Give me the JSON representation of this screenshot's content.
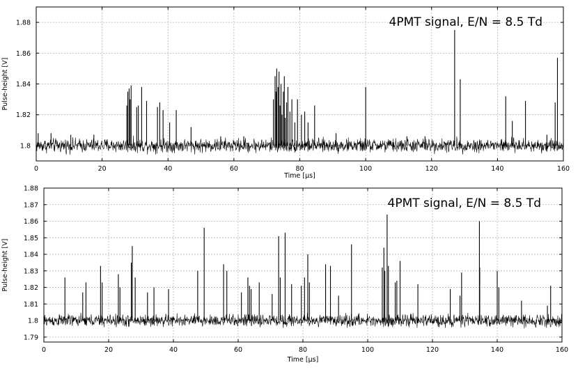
{
  "chart_data": [
    {
      "type": "line",
      "title": "4PMT signal, E/N = 8.5 Td",
      "xlabel": "Time [µs]",
      "ylabel": "Pulse-height [V]",
      "xlim": [
        0,
        160
      ],
      "ylim": [
        1.79,
        1.89
      ],
      "xticks": [
        0,
        20,
        40,
        60,
        80,
        100,
        120,
        140,
        160
      ],
      "yticks": [
        1.8,
        1.82,
        1.84,
        1.86,
        1.88
      ],
      "ytick_labels": [
        "1.8",
        "1.82",
        "1.84",
        "1.86",
        "1.88"
      ],
      "grid": true,
      "baseline": 1.8,
      "noise_amplitude": 0.0022,
      "color": "#000000",
      "spikes": [
        {
          "x": 0.6,
          "y": 1.808
        },
        {
          "x": 4.5,
          "y": 1.808
        },
        {
          "x": 10.5,
          "y": 1.807
        },
        {
          "x": 17.5,
          "y": 1.807
        },
        {
          "x": 27.5,
          "y": 1.826
        },
        {
          "x": 27.8,
          "y": 1.835
        },
        {
          "x": 28.2,
          "y": 1.837
        },
        {
          "x": 28.5,
          "y": 1.83
        },
        {
          "x": 28.8,
          "y": 1.839
        },
        {
          "x": 30.5,
          "y": 1.825
        },
        {
          "x": 31.0,
          "y": 1.826
        },
        {
          "x": 32.0,
          "y": 1.838
        },
        {
          "x": 33.5,
          "y": 1.829
        },
        {
          "x": 36.8,
          "y": 1.825
        },
        {
          "x": 37.5,
          "y": 1.828
        },
        {
          "x": 38.5,
          "y": 1.823
        },
        {
          "x": 40.5,
          "y": 1.815
        },
        {
          "x": 42.5,
          "y": 1.823
        },
        {
          "x": 47.0,
          "y": 1.812
        },
        {
          "x": 56.0,
          "y": 1.806
        },
        {
          "x": 63.0,
          "y": 1.806
        },
        {
          "x": 72.0,
          "y": 1.83
        },
        {
          "x": 72.5,
          "y": 1.845
        },
        {
          "x": 72.8,
          "y": 1.835
        },
        {
          "x": 73.0,
          "y": 1.85
        },
        {
          "x": 73.4,
          "y": 1.838
        },
        {
          "x": 73.7,
          "y": 1.848
        },
        {
          "x": 74.0,
          "y": 1.826
        },
        {
          "x": 74.3,
          "y": 1.84
        },
        {
          "x": 74.6,
          "y": 1.82
        },
        {
          "x": 75.0,
          "y": 1.835
        },
        {
          "x": 75.3,
          "y": 1.845
        },
        {
          "x": 75.6,
          "y": 1.818
        },
        {
          "x": 76.0,
          "y": 1.828
        },
        {
          "x": 76.4,
          "y": 1.838
        },
        {
          "x": 77.0,
          "y": 1.822
        },
        {
          "x": 77.6,
          "y": 1.83
        },
        {
          "x": 78.5,
          "y": 1.815
        },
        {
          "x": 79.3,
          "y": 1.83
        },
        {
          "x": 80.5,
          "y": 1.82
        },
        {
          "x": 81.5,
          "y": 1.822
        },
        {
          "x": 82.5,
          "y": 1.815
        },
        {
          "x": 84.5,
          "y": 1.826
        },
        {
          "x": 91.0,
          "y": 1.808
        },
        {
          "x": 100.0,
          "y": 1.838
        },
        {
          "x": 112.5,
          "y": 1.806
        },
        {
          "x": 118.0,
          "y": 1.806
        },
        {
          "x": 127.0,
          "y": 1.875
        },
        {
          "x": 128.7,
          "y": 1.843
        },
        {
          "x": 142.5,
          "y": 1.832
        },
        {
          "x": 144.5,
          "y": 1.816
        },
        {
          "x": 148.5,
          "y": 1.829
        },
        {
          "x": 155.0,
          "y": 1.807
        },
        {
          "x": 157.5,
          "y": 1.828
        },
        {
          "x": 158.2,
          "y": 1.857
        }
      ]
    },
    {
      "type": "line",
      "title": "4PMT signal, E/N = 8.5 Td",
      "xlabel": "Time [µs]",
      "ylabel": "Pulse-height [V]",
      "xlim": [
        0,
        160
      ],
      "ylim": [
        1.787,
        1.88
      ],
      "xticks": [
        0,
        20,
        40,
        60,
        80,
        100,
        120,
        140,
        160
      ],
      "yticks": [
        1.79,
        1.8,
        1.81,
        1.82,
        1.83,
        1.84,
        1.85,
        1.86,
        1.87,
        1.88
      ],
      "ytick_labels": [
        "1.79",
        "1.8",
        "1.81",
        "1.82",
        "1.83",
        "1.84",
        "1.85",
        "1.86",
        "1.87",
        "1.88"
      ],
      "grid": true,
      "baseline": 1.8,
      "noise_amplitude": 0.0018,
      "color": "#000000",
      "spikes": [
        {
          "x": 6.5,
          "y": 1.826
        },
        {
          "x": 12.0,
          "y": 1.817
        },
        {
          "x": 13.0,
          "y": 1.823
        },
        {
          "x": 17.5,
          "y": 1.833
        },
        {
          "x": 18.0,
          "y": 1.823
        },
        {
          "x": 23.0,
          "y": 1.828
        },
        {
          "x": 23.5,
          "y": 1.82
        },
        {
          "x": 27.0,
          "y": 1.835
        },
        {
          "x": 27.3,
          "y": 1.845
        },
        {
          "x": 28.2,
          "y": 1.826
        },
        {
          "x": 32.0,
          "y": 1.817
        },
        {
          "x": 34.0,
          "y": 1.82
        },
        {
          "x": 38.5,
          "y": 1.819
        },
        {
          "x": 47.5,
          "y": 1.83
        },
        {
          "x": 49.5,
          "y": 1.856
        },
        {
          "x": 55.5,
          "y": 1.834
        },
        {
          "x": 56.5,
          "y": 1.83
        },
        {
          "x": 61.0,
          "y": 1.817
        },
        {
          "x": 63.0,
          "y": 1.826
        },
        {
          "x": 63.5,
          "y": 1.821
        },
        {
          "x": 64.0,
          "y": 1.819
        },
        {
          "x": 66.5,
          "y": 1.823
        },
        {
          "x": 70.5,
          "y": 1.816
        },
        {
          "x": 72.5,
          "y": 1.851
        },
        {
          "x": 73.0,
          "y": 1.826
        },
        {
          "x": 74.5,
          "y": 1.853
        },
        {
          "x": 76.5,
          "y": 1.822
        },
        {
          "x": 79.5,
          "y": 1.821
        },
        {
          "x": 80.5,
          "y": 1.826
        },
        {
          "x": 81.5,
          "y": 1.84
        },
        {
          "x": 82.0,
          "y": 1.823
        },
        {
          "x": 87.0,
          "y": 1.834
        },
        {
          "x": 88.5,
          "y": 1.833
        },
        {
          "x": 91.0,
          "y": 1.815
        },
        {
          "x": 95.0,
          "y": 1.846
        },
        {
          "x": 104.5,
          "y": 1.832
        },
        {
          "x": 105.0,
          "y": 1.844
        },
        {
          "x": 105.3,
          "y": 1.83
        },
        {
          "x": 106.0,
          "y": 1.864
        },
        {
          "x": 106.4,
          "y": 1.833
        },
        {
          "x": 108.5,
          "y": 1.823
        },
        {
          "x": 109.0,
          "y": 1.824
        },
        {
          "x": 110.0,
          "y": 1.836
        },
        {
          "x": 115.5,
          "y": 1.822
        },
        {
          "x": 125.5,
          "y": 1.819
        },
        {
          "x": 128.5,
          "y": 1.815
        },
        {
          "x": 129.0,
          "y": 1.829
        },
        {
          "x": 134.5,
          "y": 1.86
        },
        {
          "x": 134.6,
          "y": 1.832
        },
        {
          "x": 140.0,
          "y": 1.83
        },
        {
          "x": 140.5,
          "y": 1.82
        },
        {
          "x": 147.5,
          "y": 1.812
        },
        {
          "x": 155.5,
          "y": 1.809
        },
        {
          "x": 156.5,
          "y": 1.821
        }
      ]
    }
  ]
}
